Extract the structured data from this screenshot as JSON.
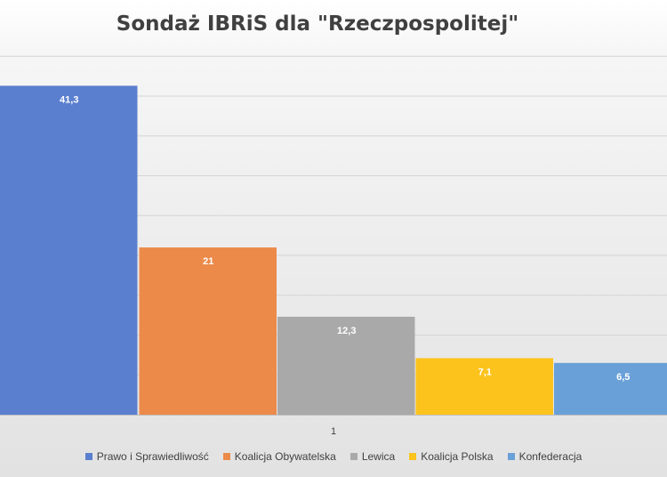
{
  "chart_data": {
    "type": "bar",
    "title": "Sondaż IBRiS dla \"Rzeczpospolitej\"",
    "categories": [
      "1"
    ],
    "series": [
      {
        "name": "Prawo i Sprawiedliwość",
        "values": [
          41.3
        ],
        "label": "41,3",
        "color": "#5b7fcf"
      },
      {
        "name": "Koalicja Obywatelska",
        "values": [
          21
        ],
        "label": "21",
        "color": "#ec8a4a"
      },
      {
        "name": "Lewica",
        "values": [
          12.3
        ],
        "label": "12,3",
        "color": "#a9a9a9"
      },
      {
        "name": "Koalicja Polska",
        "values": [
          7.1
        ],
        "label": "7,1",
        "color": "#fcc31c"
      },
      {
        "name": "Konfederacja",
        "values": [
          6.5
        ],
        "label": "6,5",
        "color": "#6aa0d8"
      }
    ],
    "ylim": [
      0,
      45
    ],
    "grid": true,
    "legend": "bottom"
  }
}
